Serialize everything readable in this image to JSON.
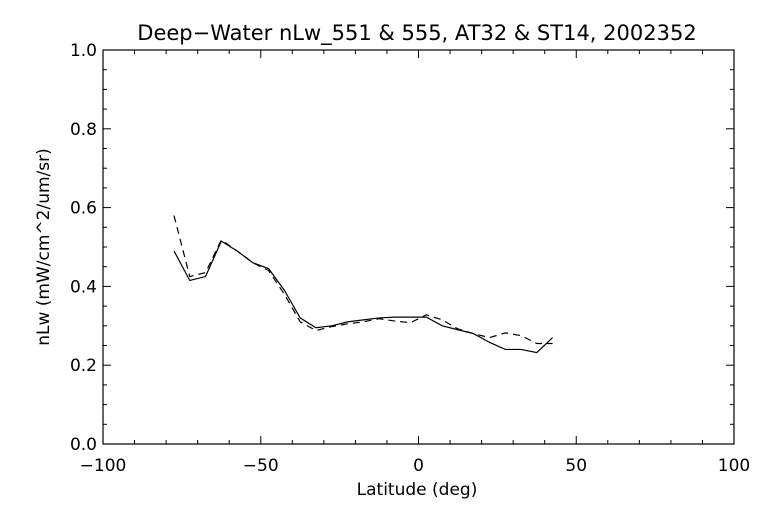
{
  "chart_data": {
    "type": "line",
    "title": "Deep−Water nLw_551 & 555, AT32 & ST14, 2002352",
    "xlabel": "Latitude (deg)",
    "ylabel": "nLw (mW/cm^2/um/sr)",
    "xlim": [
      -100,
      100
    ],
    "ylim": [
      0.0,
      1.0
    ],
    "x_ticks": [
      -100,
      -50,
      0,
      50,
      100
    ],
    "x_tick_labels": [
      "−100",
      "−50",
      "0",
      "50",
      "100"
    ],
    "y_ticks": [
      0.0,
      0.2,
      0.4,
      0.6,
      0.8,
      1.0
    ],
    "y_tick_labels": [
      "0.0",
      "0.2",
      "0.4",
      "0.6",
      "0.8",
      "1.0"
    ],
    "grid": false,
    "series": [
      {
        "style": "solid",
        "color": "#000000",
        "x": [
          -77.5,
          -72.5,
          -67.5,
          -62.5,
          -57.5,
          -52.5,
          -47.5,
          -42.5,
          -37.5,
          -32.5,
          -27.5,
          -22.5,
          -17.5,
          -12.5,
          -7.5,
          -2.5,
          2.5,
          7.5,
          12.5,
          17.5,
          22.5,
          27.5,
          32.5,
          37.5,
          42.5
        ],
        "y": [
          0.49,
          0.415,
          0.425,
          0.515,
          0.49,
          0.46,
          0.445,
          0.39,
          0.32,
          0.295,
          0.3,
          0.31,
          0.315,
          0.32,
          0.322,
          0.322,
          0.322,
          0.3,
          0.29,
          0.28,
          0.258,
          0.24,
          0.24,
          0.232,
          0.27
        ]
      },
      {
        "style": "dashed",
        "color": "#000000",
        "x": [
          -77.5,
          -72.5,
          -67.5,
          -62.5,
          -57.5,
          -52.5,
          -47.5,
          -42.5,
          -37.5,
          -32.5,
          -27.5,
          -22.5,
          -17.5,
          -12.5,
          -7.5,
          -2.5,
          2.5,
          7.5,
          12.5,
          17.5,
          22.5,
          27.5,
          32.5,
          37.5,
          42.5
        ],
        "y": [
          0.58,
          0.425,
          0.435,
          0.518,
          0.49,
          0.46,
          0.44,
          0.38,
          0.31,
          0.288,
          0.298,
          0.305,
          0.31,
          0.318,
          0.312,
          0.308,
          0.328,
          0.315,
          0.292,
          0.28,
          0.27,
          0.282,
          0.275,
          0.255,
          0.255
        ]
      }
    ]
  }
}
